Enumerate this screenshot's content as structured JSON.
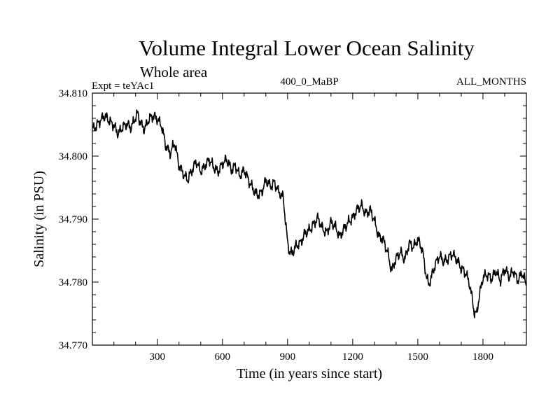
{
  "chart_data": {
    "type": "line",
    "title": "Volume Integral Lower Ocean Salinity",
    "subtitle": "Whole area",
    "annotations": {
      "left": "Expt = teYAc1",
      "center": "400_0_MaBP",
      "right": "ALL_MONTHS"
    },
    "xlabel": "Time (in years since start)",
    "ylabel": "Salinity (in PSU)",
    "xlim": [
      1,
      2000
    ],
    "ylim": [
      34.77,
      34.81
    ],
    "x_ticks": [
      300,
      600,
      900,
      1200,
      1500,
      1800
    ],
    "x_tick_labels": [
      "300",
      "600",
      "900",
      "1200",
      "1500",
      "1800"
    ],
    "y_ticks": [
      34.77,
      34.78,
      34.79,
      34.8,
      34.81
    ],
    "y_tick_labels": [
      "34.770",
      "34.780",
      "34.790",
      "34.800",
      "34.810"
    ],
    "grid": false,
    "series": [
      {
        "name": "Salinity",
        "color": "#000000",
        "x": [
          1,
          20,
          40,
          60,
          80,
          100,
          120,
          140,
          160,
          180,
          200,
          210,
          220,
          240,
          260,
          280,
          300,
          320,
          340,
          360,
          380,
          400,
          420,
          440,
          460,
          480,
          500,
          520,
          540,
          560,
          580,
          600,
          620,
          640,
          660,
          680,
          700,
          720,
          740,
          760,
          780,
          800,
          820,
          840,
          860,
          880,
          900,
          910,
          920,
          940,
          960,
          980,
          1000,
          1020,
          1040,
          1060,
          1080,
          1100,
          1120,
          1140,
          1160,
          1180,
          1200,
          1220,
          1240,
          1260,
          1280,
          1300,
          1320,
          1340,
          1360,
          1370,
          1380,
          1400,
          1420,
          1440,
          1460,
          1480,
          1500,
          1520,
          1540,
          1550,
          1560,
          1580,
          1600,
          1620,
          1640,
          1660,
          1680,
          1700,
          1720,
          1740,
          1760,
          1770,
          1780,
          1800,
          1820,
          1840,
          1860,
          1880,
          1900,
          1920,
          1940,
          1960,
          1980,
          2000
        ],
        "values": [
          34.8042,
          34.8048,
          34.8058,
          34.8064,
          34.8055,
          34.8049,
          34.8035,
          34.8046,
          34.8051,
          34.8045,
          34.8062,
          34.8068,
          34.8055,
          34.8042,
          34.8058,
          34.8064,
          34.8059,
          34.8048,
          34.8015,
          34.8005,
          34.8022,
          34.7985,
          34.7972,
          34.7962,
          34.7978,
          34.7992,
          34.7975,
          34.7985,
          34.7995,
          34.7982,
          34.7975,
          34.7988,
          34.7995,
          34.7978,
          34.7985,
          34.7968,
          34.7978,
          34.7962,
          34.7948,
          34.7938,
          34.7942,
          34.7962,
          34.7952,
          34.7958,
          34.7942,
          34.7935,
          34.7862,
          34.7848,
          34.7845,
          34.7858,
          34.7862,
          34.7878,
          34.7882,
          34.7892,
          34.7902,
          34.7885,
          34.7878,
          34.7895,
          34.7888,
          34.7872,
          34.7885,
          34.7895,
          34.7902,
          34.7915,
          34.7922,
          34.7908,
          34.7915,
          34.7898,
          34.7872,
          34.7868,
          34.7848,
          34.7832,
          34.7818,
          34.7838,
          34.7848,
          34.7835,
          34.7862,
          34.7855,
          34.7868,
          34.7852,
          34.7808,
          34.7795,
          34.7805,
          34.7828,
          34.7842,
          34.7832,
          34.7838,
          34.7845,
          34.7835,
          34.7822,
          34.7815,
          34.7795,
          34.7752,
          34.7748,
          34.7772,
          34.7808,
          34.7812,
          34.7805,
          34.7818,
          34.7802,
          34.7822,
          34.7808,
          34.7818,
          34.7802,
          34.7815,
          34.7795
        ]
      }
    ]
  }
}
